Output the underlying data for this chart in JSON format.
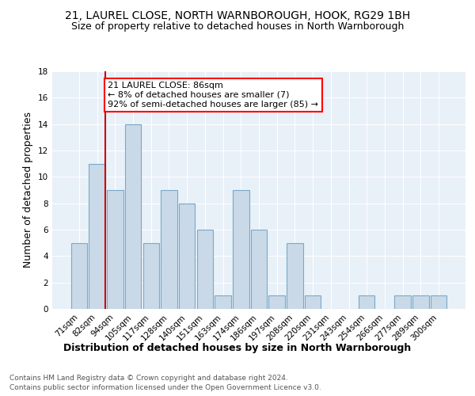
{
  "title": "21, LAUREL CLOSE, NORTH WARNBOROUGH, HOOK, RG29 1BH",
  "subtitle": "Size of property relative to detached houses in North Warnborough",
  "xlabel": "Distribution of detached houses by size in North Warnborough",
  "ylabel": "Number of detached properties",
  "categories": [
    "71sqm",
    "82sqm",
    "94sqm",
    "105sqm",
    "117sqm",
    "128sqm",
    "140sqm",
    "151sqm",
    "163sqm",
    "174sqm",
    "186sqm",
    "197sqm",
    "208sqm",
    "220sqm",
    "231sqm",
    "243sqm",
    "254sqm",
    "266sqm",
    "277sqm",
    "289sqm",
    "300sqm"
  ],
  "values": [
    5,
    11,
    9,
    14,
    5,
    9,
    8,
    6,
    1,
    9,
    6,
    1,
    5,
    1,
    0,
    0,
    1,
    0,
    1,
    1,
    1
  ],
  "bar_color": "#c9d9e8",
  "bar_edge_color": "#7aa8c8",
  "background_color": "#e8f0f8",
  "red_line_index": 1,
  "annotation_line1": "21 LAUREL CLOSE: 86sqm",
  "annotation_line2": "← 8% of detached houses are smaller (7)",
  "annotation_line3": "92% of semi-detached houses are larger (85) →",
  "annotation_box_color": "white",
  "annotation_box_edge_color": "red",
  "red_line_color": "#cc0000",
  "ylim": [
    0,
    18
  ],
  "yticks": [
    0,
    2,
    4,
    6,
    8,
    10,
    12,
    14,
    16,
    18
  ],
  "footer_line1": "Contains HM Land Registry data © Crown copyright and database right 2024.",
  "footer_line2": "Contains public sector information licensed under the Open Government Licence v3.0.",
  "title_fontsize": 10,
  "subtitle_fontsize": 9,
  "xlabel_fontsize": 9,
  "ylabel_fontsize": 9,
  "tick_fontsize": 7.5,
  "annotation_fontsize": 8,
  "footer_fontsize": 6.5
}
